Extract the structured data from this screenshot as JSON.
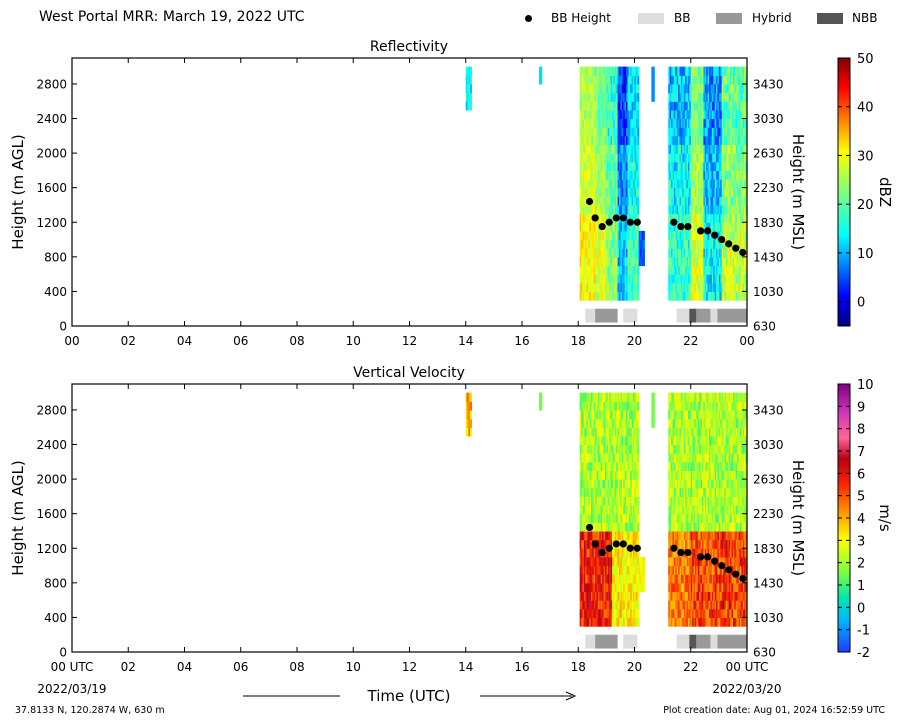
{
  "title": "West Portal MRR:  March 19, 2022 UTC",
  "legend": [
    {
      "label": "BB Height",
      "marker": "dot",
      "color": "#000000"
    },
    {
      "label": "BB",
      "marker": "box",
      "color": "#dddddd"
    },
    {
      "label": "Hybrid",
      "marker": "box",
      "color": "#999999"
    },
    {
      "label": "NBB",
      "marker": "box",
      "color": "#555555"
    }
  ],
  "footer": {
    "coords": "37.8133 N, 120.2874 W, 630 m",
    "created": "Plot creation date: Aug 01, 2024 16:52:59 UTC"
  },
  "chart_data": [
    {
      "type": "heatmap",
      "title": "Reflectivity",
      "xlabel": "",
      "ylabel": "Height (m AGL)",
      "ylabel_right": "Height (m MSL)",
      "xlim": [
        0,
        24
      ],
      "ylim": [
        0,
        3100
      ],
      "x_ticks": [
        "00",
        "02",
        "04",
        "06",
        "08",
        "10",
        "12",
        "14",
        "16",
        "18",
        "20",
        "22",
        "00"
      ],
      "y_ticks": [
        0,
        400,
        800,
        1200,
        1600,
        2000,
        2400,
        2800
      ],
      "y_right_ticks": [
        "630",
        "1030",
        "1430",
        "1830",
        "2230",
        "2630",
        "3030",
        "3430"
      ],
      "colorbar": {
        "label": "dBZ",
        "min": -5,
        "max": 50,
        "ticks": [
          0,
          10,
          20,
          30,
          40,
          50
        ],
        "colormap": "jet"
      },
      "bb_height": {
        "x": [
          18.4,
          18.6,
          18.85,
          19.1,
          19.35,
          19.6,
          19.85,
          20.1,
          21.4,
          21.65,
          21.9,
          22.35,
          22.6,
          22.85,
          23.1,
          23.35,
          23.6,
          23.85
        ],
        "y": [
          1440,
          1250,
          1150,
          1200,
          1250,
          1250,
          1200,
          1200,
          1200,
          1150,
          1150,
          1100,
          1100,
          1050,
          1000,
          950,
          900,
          850
        ]
      },
      "bb_type": [
        {
          "start": 18.25,
          "end": 18.6,
          "type": "BB"
        },
        {
          "start": 18.6,
          "end": 19.4,
          "type": "Hybrid"
        },
        {
          "start": 19.6,
          "end": 20.1,
          "type": "BB"
        },
        {
          "start": 21.5,
          "end": 21.95,
          "type": "BB"
        },
        {
          "start": 21.95,
          "end": 22.2,
          "type": "NBB"
        },
        {
          "start": 22.2,
          "end": 22.7,
          "type": "Hybrid"
        },
        {
          "start": 22.7,
          "end": 22.95,
          "type": "BB"
        },
        {
          "start": 22.95,
          "end": 24.0,
          "type": "Hybrid"
        }
      ]
    },
    {
      "type": "heatmap",
      "title": "Vertical Velocity",
      "xlabel": "Time (UTC)",
      "ylabel": "Height (m AGL)",
      "ylabel_right": "Height (m MSL)",
      "xlim": [
        0,
        24
      ],
      "ylim": [
        0,
        3100
      ],
      "x_ticks": [
        "00 UTC",
        "02",
        "04",
        "06",
        "08",
        "10",
        "12",
        "14",
        "16",
        "18",
        "20",
        "22",
        "00 UTC"
      ],
      "x_subticks": {
        "0": "2022/03/19",
        "12": "2022/03/20"
      },
      "y_ticks": [
        0,
        400,
        800,
        1200,
        1600,
        2000,
        2400,
        2800
      ],
      "y_right_ticks": [
        "630",
        "1030",
        "1430",
        "1830",
        "2230",
        "2630",
        "3030",
        "3430"
      ],
      "colorbar": {
        "label": "m/s",
        "min": -2,
        "max": 10,
        "ticks": [
          -2,
          -1,
          0,
          1,
          2,
          3,
          4,
          5,
          6,
          7,
          8,
          9,
          10
        ],
        "colormap": "velocity"
      },
      "bb_height": {
        "x": [
          18.4,
          18.6,
          18.85,
          19.1,
          19.35,
          19.6,
          19.85,
          20.1,
          21.4,
          21.65,
          21.9,
          22.35,
          22.6,
          22.85,
          23.1,
          23.35,
          23.6,
          23.85
        ],
        "y": [
          1440,
          1250,
          1150,
          1200,
          1250,
          1250,
          1200,
          1200,
          1200,
          1150,
          1150,
          1100,
          1100,
          1050,
          1000,
          950,
          900,
          850
        ]
      },
      "bb_type": [
        {
          "start": 18.25,
          "end": 18.6,
          "type": "BB"
        },
        {
          "start": 18.6,
          "end": 19.4,
          "type": "Hybrid"
        },
        {
          "start": 19.6,
          "end": 20.1,
          "type": "BB"
        },
        {
          "start": 21.5,
          "end": 21.95,
          "type": "BB"
        },
        {
          "start": 21.95,
          "end": 22.2,
          "type": "NBB"
        },
        {
          "start": 22.2,
          "end": 22.7,
          "type": "Hybrid"
        },
        {
          "start": 22.7,
          "end": 22.95,
          "type": "BB"
        },
        {
          "start": 22.95,
          "end": 24.0,
          "type": "Hybrid"
        }
      ]
    }
  ]
}
